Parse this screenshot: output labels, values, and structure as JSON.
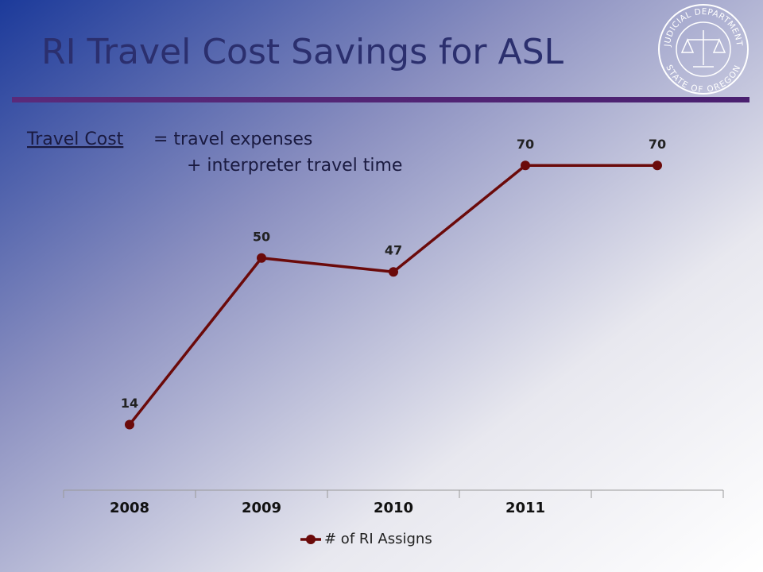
{
  "chart_data": {
    "type": "line",
    "title": "RI Travel Cost Savings for ASL",
    "definition": {
      "term": "Travel Cost",
      "part1": "= travel expenses",
      "part2": "+ interpreter travel time"
    },
    "seal": {
      "top": "JUDICIAL DEPARTMENT",
      "bottom": "STATE OF OREGON"
    },
    "categories": [
      "2008",
      "2009",
      "2010",
      "2011",
      null
    ],
    "series": [
      {
        "name": "# of RI Assigns",
        "color": "#6b0a0a",
        "values": [
          14,
          50,
          47,
          70,
          70
        ]
      }
    ],
    "ylim": [
      0,
      80
    ],
    "data_labels": true
  }
}
